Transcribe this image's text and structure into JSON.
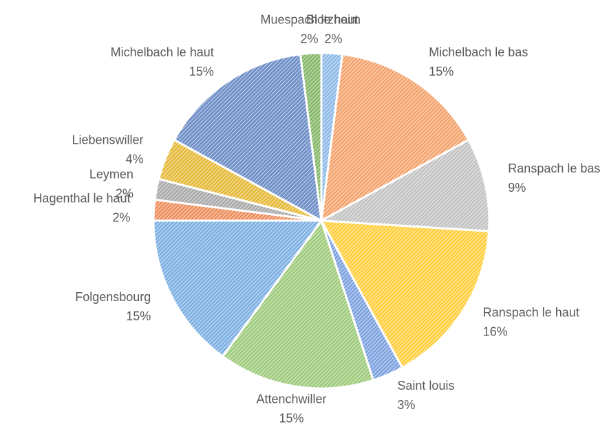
{
  "chart_data": {
    "type": "pie",
    "categories": [
      "Blotzheim",
      "Michelbach le bas",
      "Ranspach le bas",
      "Ranspach le haut",
      "Saint louis",
      "Attenchwiller",
      "Folgensbourg",
      "Hagenthal le haut",
      "Leymen",
      "Liebenswiller",
      "Michelbach le haut",
      "Muespach le haut"
    ],
    "values": [
      2,
      15,
      9,
      16,
      3,
      15,
      15,
      2,
      2,
      4,
      15,
      2
    ],
    "value_labels": [
      "2%",
      "15%",
      "9%",
      "16%",
      "3%",
      "15%",
      "15%",
      "2%",
      "2%",
      "4%",
      "15%",
      "2%"
    ],
    "colors": [
      "#8fbbe8",
      "#f4a46e",
      "#c4c4c4",
      "#ffcf40",
      "#7fa3e0",
      "#9fcb7c",
      "#7eb0e3",
      "#ee9060",
      "#ababab",
      "#e6bb3c",
      "#6f8fc8",
      "#86b86a"
    ]
  }
}
